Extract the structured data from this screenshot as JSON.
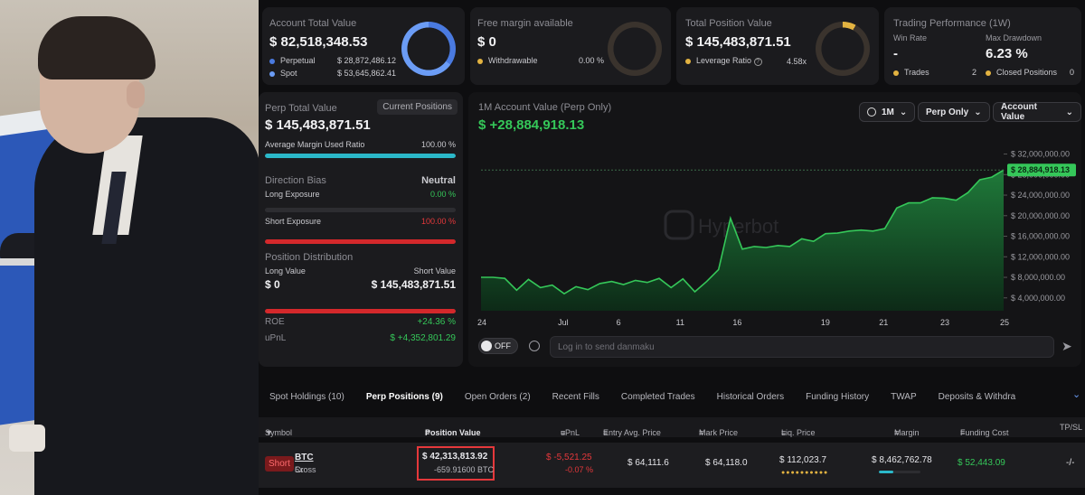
{
  "account": {
    "title": "Account Total Value",
    "value": "$ 82,518,348.53",
    "perp_label": "Perpetual",
    "perp_value": "$ 28,872,486.12",
    "spot_label": "Spot",
    "spot_value": "$ 53,645,862.41",
    "perp_fraction": 0.35
  },
  "margin": {
    "title": "Free margin available",
    "value": "$ 0",
    "withdraw_label": "Withdrawable",
    "withdraw_value": "0.00 %"
  },
  "position": {
    "title": "Total Position Value",
    "value": "$ 145,483,871.51",
    "leverage_label": "Leverage Ratio",
    "leverage_value": "4.58x"
  },
  "performance": {
    "title": "Trading Performance (1W)",
    "winrate_label": "Win Rate",
    "winrate_value": "-",
    "drawdown_label": "Max Drawdown",
    "drawdown_value": "6.23 %",
    "trades_label": "Trades",
    "trades_value": "2",
    "closed_label": "Closed Positions",
    "closed_value": "0"
  },
  "perp": {
    "title": "Perp Total Value",
    "current_positions_button": "Current Positions",
    "value": "$ 145,483,871.51",
    "margin_ratio_label": "Average Margin Used Ratio",
    "margin_ratio_value": "100.00 %",
    "margin_ratio_fraction": 1.0,
    "bias_label": "Direction Bias",
    "bias_value": "Neutral",
    "long_exposure_label": "Long Exposure",
    "long_exposure_value": "0.00 %",
    "short_exposure_label": "Short Exposure",
    "short_exposure_value": "100.00 %",
    "distribution_label": "Position Distribution",
    "long_value_label": "Long Value",
    "short_value_label": "Short Value",
    "long_value": "$ 0",
    "short_value": "$ 145,483,871.51",
    "roe_label": "ROE",
    "roe_value": "+24.36 %",
    "upnl_label": "uPnL",
    "upnl_value": "$ +4,352,801.29"
  },
  "chart_panel": {
    "title": "1M Account Value (Perp Only)",
    "value": "$ +28,884,918.13",
    "period_select": "1M",
    "scope_select": "Perp Only",
    "metric_select": "Account Value",
    "watermark": "Hyperbot",
    "current_tag": "$ 28,884,918.13",
    "toggle_label": "OFF",
    "danmaku_placeholder": "Log in to send danmaku"
  },
  "chart_data": {
    "type": "area",
    "x_ticks": [
      "24",
      "Jul",
      "6",
      "11",
      "16",
      "19",
      "21",
      "23",
      "25"
    ],
    "y_ticks": [
      "$ 32,000,000.00",
      "$ 28,000,000.00",
      "$ 24,000,000.00",
      "$ 20,000,000.00",
      "$ 16,000,000.00",
      "$ 12,000,000.00",
      "$ 8,000,000.00",
      "$ 4,000,000.00"
    ],
    "ylim": [
      1500000,
      33500000
    ],
    "x": [
      0,
      1,
      2,
      3,
      4,
      5,
      6,
      7,
      8,
      9,
      10,
      11,
      12,
      13,
      14,
      15,
      16,
      17,
      18,
      19,
      20,
      21,
      22,
      23,
      24,
      25,
      26,
      27,
      28,
      29,
      30,
      31,
      32,
      33,
      34,
      35,
      36,
      37,
      38,
      39,
      40,
      41,
      42,
      43,
      44
    ],
    "values": [
      8000000,
      8000000,
      7800000,
      5500000,
      7600000,
      6000000,
      6500000,
      4800000,
      6200000,
      5600000,
      6800000,
      7200000,
      6600000,
      7400000,
      7000000,
      7800000,
      6000000,
      7700000,
      5200000,
      7200000,
      9500000,
      19500000,
      13500000,
      14000000,
      13800000,
      14200000,
      14000000,
      15500000,
      15000000,
      16500000,
      16600000,
      17000000,
      17200000,
      17000000,
      17500000,
      21500000,
      22500000,
      22500000,
      23500000,
      23400000,
      23000000,
      24500000,
      27000000,
      27500000,
      28884918
    ],
    "color": "#35c759"
  },
  "tabs": [
    {
      "label": "Spot Holdings (10)"
    },
    {
      "label": "Perp Positions (9)"
    },
    {
      "label": "Open Orders (2)"
    },
    {
      "label": "Recent Fills"
    },
    {
      "label": "Completed Trades"
    },
    {
      "label": "Historical Orders"
    },
    {
      "label": "Funding History"
    },
    {
      "label": "TWAP"
    },
    {
      "label": "Deposits & Withdra"
    }
  ],
  "table": {
    "headers": {
      "symbol": "Symbol",
      "position_value": "Position Value",
      "upnl": "uPnL",
      "entry": "Entry Avg. Price",
      "mark": "Mark Price",
      "liq": "Liq. Price",
      "margin": "Margin",
      "funding": "Funding Cost",
      "tpsl": "TP/SL"
    },
    "row": {
      "side": "Short",
      "symbol": "BTC",
      "mode": "Cross",
      "leverage": "5x",
      "position_value": "$ 42,313,813.92",
      "position_size": "-659.91600 BTC",
      "upnl": "$ -5,521.25",
      "upnl_pct": "-0.07 %",
      "entry": "$ 64,111.6",
      "mark": "$ 64,118.0",
      "liq": "$ 112,023.7",
      "margin": "$ 8,462,762.78",
      "funding": "$ 52,443.09",
      "tpsl": "-/-"
    }
  }
}
